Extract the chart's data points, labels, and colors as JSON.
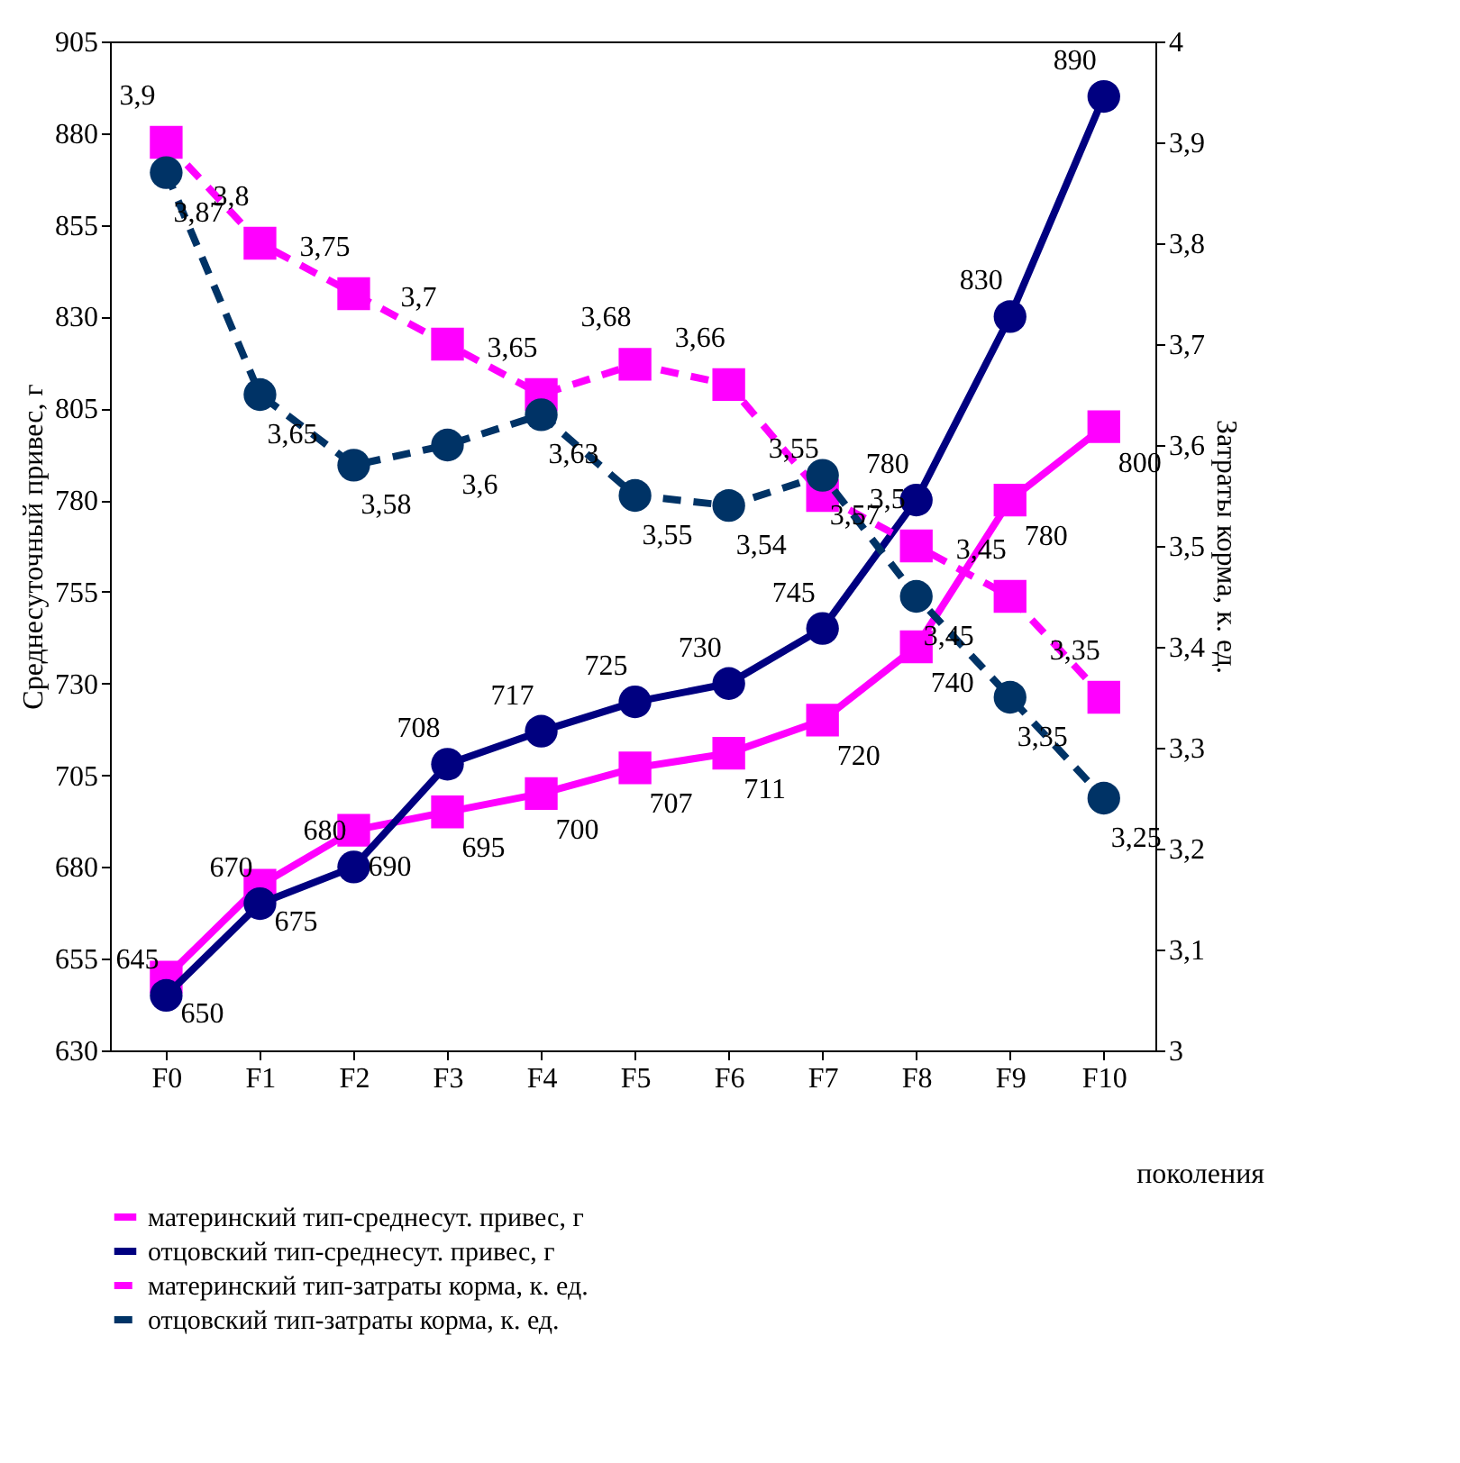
{
  "chart_data": {
    "type": "line",
    "categories": [
      "F0",
      "F1",
      "F2",
      "F3",
      "F4",
      "F5",
      "F6",
      "F7",
      "F8",
      "F9",
      "F10"
    ],
    "xlabel": "поколения",
    "ylabel": "Среднесуточный привес, г",
    "y2label": "Затраты корма, к. ед.",
    "ylim": [
      630,
      905
    ],
    "yticks": [
      630,
      655,
      680,
      705,
      730,
      755,
      780,
      805,
      830,
      855,
      880,
      905
    ],
    "y2lim": [
      3,
      4
    ],
    "y2ticks": [
      3,
      {
        "value": 3.1,
        "label": "3,1"
      },
      {
        "value": 3.2,
        "label": "3,2"
      },
      {
        "value": 3.3,
        "label": "3,3"
      },
      {
        "value": 3.4,
        "label": "3,4"
      },
      {
        "value": 3.5,
        "label": "3,5"
      },
      {
        "value": 3.6,
        "label": "3,6"
      },
      {
        "value": 3.7,
        "label": "3,7"
      },
      {
        "value": 3.8,
        "label": "3,8"
      },
      {
        "value": 3.9,
        "label": "3,9"
      },
      4
    ],
    "legend": "bottom",
    "grid": false,
    "data_labels": true,
    "series": [
      {
        "name": "материнский тип-среднесут. привес, г",
        "color": "#ff00ff",
        "marker": "square",
        "line_style": "solid",
        "values": [
          650,
          675,
          690,
          695,
          700,
          707,
          711,
          720,
          740,
          780,
          800
        ]
      },
      {
        "name": "отцовский тип-среднесут. привес, г",
        "color": "#000080",
        "marker": "circle",
        "line_style": "solid",
        "values": [
          645,
          670,
          680,
          708,
          717,
          725,
          730,
          745,
          780,
          830,
          890
        ]
      },
      {
        "name": "материнский тип-затраты корма, к. ед.",
        "color": "#ff00ff",
        "marker": "square",
        "line_style": "dashed",
        "axis": "y2",
        "values": [
          3.9,
          3.8,
          3.75,
          3.7,
          3.65,
          3.68,
          3.66,
          3.55,
          3.5,
          3.45,
          3.35
        ],
        "value_labels": [
          "3,9",
          "3,8",
          "3,75",
          "3,7",
          "3,65",
          "3,68",
          "3,66",
          "3,55",
          "3,5",
          "3,45",
          "3,35"
        ]
      },
      {
        "name": "отцовский тип-затраты корма, к. ед.",
        "color": "#003366",
        "marker": "circle",
        "line_style": "dashed",
        "axis": "y2",
        "values": [
          3.87,
          3.65,
          3.58,
          3.6,
          3.63,
          3.55,
          3.54,
          3.57,
          3.45,
          3.35,
          3.25
        ],
        "value_labels": [
          "3,87",
          "3,65",
          "3,58",
          "3,6",
          "3,63",
          "3,55",
          "3,54",
          "3,57",
          "3,45",
          "3,35",
          "3,25"
        ]
      }
    ]
  }
}
